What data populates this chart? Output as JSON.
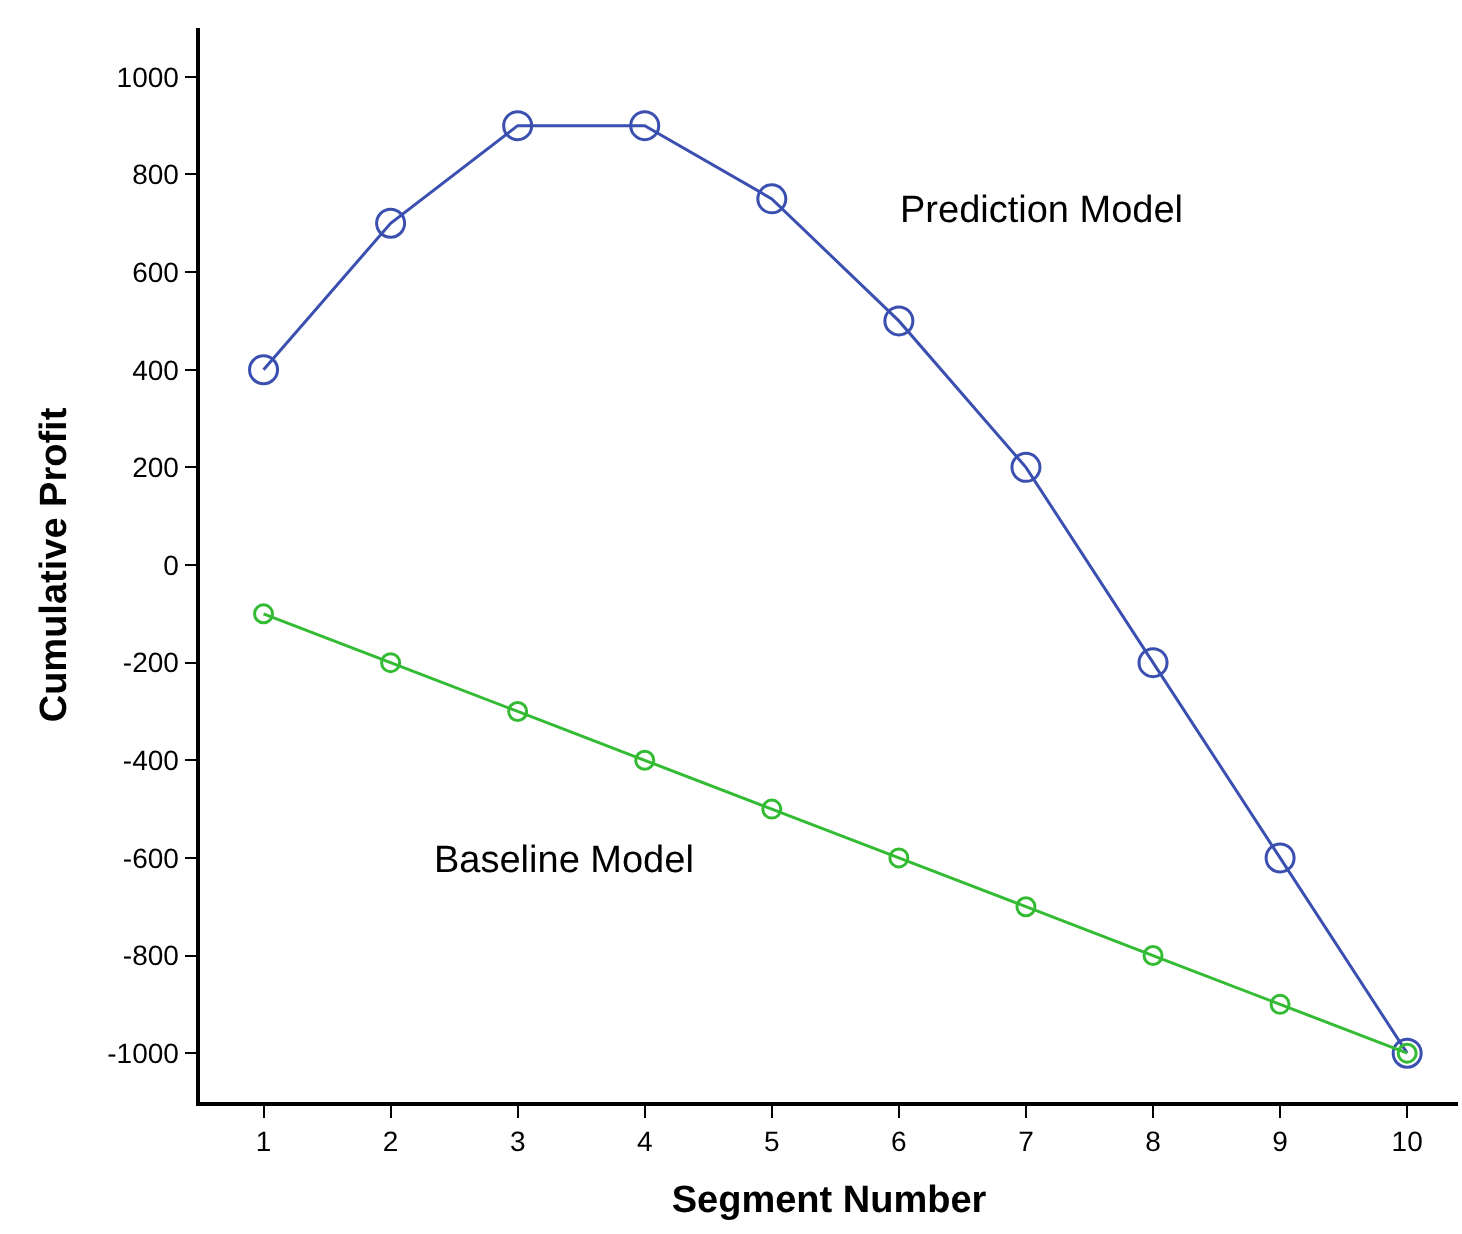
{
  "chart_data": {
    "type": "line",
    "xlabel": "Segment Number",
    "ylabel": "Cumulative Profit",
    "x": [
      1,
      2,
      3,
      4,
      5,
      6,
      7,
      8,
      9,
      10
    ],
    "series": [
      {
        "name": "Prediction Model",
        "color": "#3a4fb0",
        "values": [
          400,
          700,
          900,
          900,
          750,
          500,
          200,
          -200,
          -600,
          -1000
        ]
      },
      {
        "name": "Baseline Model",
        "color": "#33bb33",
        "values": [
          -100,
          -200,
          -300,
          -400,
          -500,
          -600,
          -700,
          -800,
          -900,
          -1000
        ]
      }
    ],
    "xlim": [
      0.5,
      10.4
    ],
    "xticks": [
      1,
      2,
      3,
      4,
      5,
      6,
      7,
      8,
      9,
      10
    ],
    "ylim": [
      -1100,
      1100
    ],
    "yticks": [
      -1000,
      -800,
      -600,
      -400,
      -200,
      0,
      200,
      400,
      600,
      800,
      1000
    ],
    "legend": false,
    "marker": "circle",
    "line_style": "solid"
  }
}
